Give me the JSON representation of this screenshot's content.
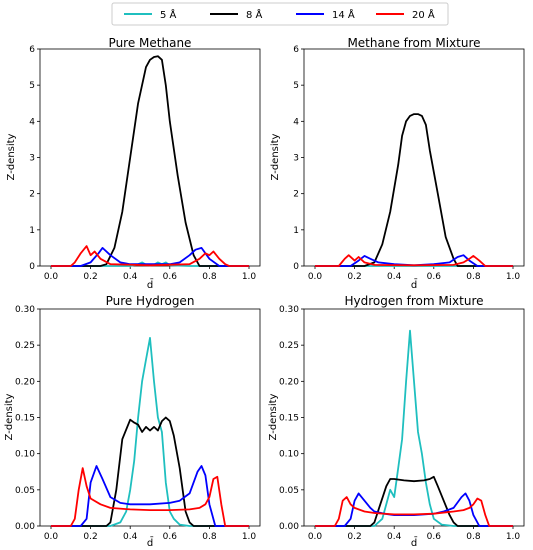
{
  "legend": {
    "items": [
      {
        "label": "5 Å",
        "color": "#1fbfbf"
      },
      {
        "label": "8 Å",
        "color": "#000000"
      },
      {
        "label": "14 Å",
        "color": "#0000ff"
      },
      {
        "label": "20 Å",
        "color": "#ff0000"
      }
    ]
  },
  "chart_data": [
    {
      "type": "line",
      "title": "Pure Methane",
      "xlabel": "d̄",
      "ylabel": "Z-density",
      "xlim": [
        0.0,
        1.0
      ],
      "ylim": [
        0,
        6
      ],
      "xticks": [
        "0.0",
        "0.2",
        "0.4",
        "0.6",
        "0.8",
        "1.0"
      ],
      "yticks": [
        "0",
        "1",
        "2",
        "3",
        "4",
        "5",
        "6"
      ],
      "series": [
        {
          "name": "5 Å",
          "color": "#1fbfbf",
          "x": [
            0.0,
            0.1,
            0.3,
            0.4,
            0.44,
            0.46,
            0.48,
            0.5,
            0.52,
            0.54,
            0.56,
            0.58,
            0.6,
            0.7,
            1.0
          ],
          "y": [
            0,
            0,
            0,
            0,
            0.05,
            0.1,
            0.04,
            0.02,
            0.04,
            0.1,
            0.05,
            0.1,
            0.02,
            0,
            0
          ]
        },
        {
          "name": "8 Å",
          "color": "#000000",
          "x": [
            0.0,
            0.25,
            0.28,
            0.32,
            0.36,
            0.4,
            0.44,
            0.48,
            0.5,
            0.52,
            0.54,
            0.56,
            0.58,
            0.6,
            0.64,
            0.68,
            0.72,
            0.75,
            1.0
          ],
          "y": [
            0,
            0,
            0.05,
            0.5,
            1.5,
            3.0,
            4.5,
            5.5,
            5.7,
            5.78,
            5.8,
            5.7,
            5.0,
            4.0,
            2.5,
            1.2,
            0.3,
            0,
            0
          ]
        },
        {
          "name": "14 Å",
          "color": "#0000ff",
          "x": [
            0.0,
            0.15,
            0.2,
            0.24,
            0.26,
            0.3,
            0.35,
            0.4,
            0.5,
            0.6,
            0.65,
            0.7,
            0.73,
            0.76,
            0.8,
            0.85,
            1.0
          ],
          "y": [
            0,
            0,
            0.1,
            0.35,
            0.5,
            0.3,
            0.1,
            0.05,
            0.05,
            0.05,
            0.1,
            0.3,
            0.45,
            0.5,
            0.2,
            0,
            0
          ]
        },
        {
          "name": "20 Å",
          "color": "#ff0000",
          "x": [
            0.0,
            0.1,
            0.12,
            0.15,
            0.18,
            0.2,
            0.22,
            0.25,
            0.3,
            0.5,
            0.7,
            0.75,
            0.78,
            0.8,
            0.82,
            0.85,
            0.88,
            0.9,
            1.0
          ],
          "y": [
            0,
            0,
            0.1,
            0.35,
            0.55,
            0.3,
            0.4,
            0.2,
            0.05,
            0.02,
            0.05,
            0.2,
            0.35,
            0.3,
            0.4,
            0.2,
            0.05,
            0,
            0
          ]
        }
      ]
    },
    {
      "type": "line",
      "title": "Methane from Mixture",
      "xlabel": "d̄",
      "ylabel": "Z-density",
      "xlim": [
        0.0,
        1.0
      ],
      "ylim": [
        0,
        6
      ],
      "xticks": [
        "0.0",
        "0.2",
        "0.4",
        "0.6",
        "0.8",
        "1.0"
      ],
      "yticks": [
        "0",
        "1",
        "2",
        "3",
        "4",
        "5",
        "6"
      ],
      "series": [
        {
          "name": "5 Å",
          "color": "#1fbfbf",
          "x": [
            0.0,
            1.0
          ],
          "y": [
            0,
            0
          ]
        },
        {
          "name": "8 Å",
          "color": "#000000",
          "x": [
            0.0,
            0.25,
            0.3,
            0.34,
            0.38,
            0.42,
            0.44,
            0.46,
            0.48,
            0.5,
            0.52,
            0.54,
            0.56,
            0.58,
            0.62,
            0.66,
            0.7,
            0.72,
            1.0
          ],
          "y": [
            0,
            0,
            0.1,
            0.6,
            1.5,
            2.8,
            3.6,
            4.0,
            4.15,
            4.2,
            4.2,
            4.15,
            3.9,
            3.2,
            2.0,
            0.8,
            0.2,
            0,
            0
          ]
        },
        {
          "name": "14 Å",
          "color": "#0000ff",
          "x": [
            0.0,
            0.18,
            0.22,
            0.25,
            0.28,
            0.32,
            0.4,
            0.5,
            0.6,
            0.68,
            0.72,
            0.75,
            0.78,
            0.82,
            1.0
          ],
          "y": [
            0,
            0,
            0.15,
            0.28,
            0.2,
            0.1,
            0.05,
            0.02,
            0.05,
            0.1,
            0.25,
            0.3,
            0.15,
            0,
            0
          ]
        },
        {
          "name": "20 Å",
          "color": "#ff0000",
          "x": [
            0.0,
            0.12,
            0.15,
            0.17,
            0.2,
            0.22,
            0.25,
            0.3,
            0.5,
            0.7,
            0.75,
            0.78,
            0.8,
            0.83,
            0.86,
            1.0
          ],
          "y": [
            0,
            0,
            0.2,
            0.3,
            0.15,
            0.25,
            0.1,
            0.03,
            0.02,
            0.03,
            0.1,
            0.2,
            0.28,
            0.15,
            0,
            0
          ]
        }
      ]
    },
    {
      "type": "line",
      "title": "Pure Hydrogen",
      "xlabel": "d̄",
      "ylabel": "Z-density",
      "xlim": [
        0.0,
        1.0
      ],
      "ylim": [
        0,
        0.3
      ],
      "xticks": [
        "0.0",
        "0.2",
        "0.4",
        "0.6",
        "0.8",
        "1.0"
      ],
      "yticks": [
        "0.00",
        "0.05",
        "0.10",
        "0.15",
        "0.20",
        "0.25",
        "0.30"
      ],
      "series": [
        {
          "name": "5 Å",
          "color": "#1fbfbf",
          "x": [
            0.0,
            0.3,
            0.35,
            0.38,
            0.4,
            0.42,
            0.44,
            0.46,
            0.48,
            0.5,
            0.52,
            0.54,
            0.56,
            0.58,
            0.6,
            0.62,
            0.65,
            0.7,
            1.0
          ],
          "y": [
            0,
            0,
            0.005,
            0.02,
            0.05,
            0.09,
            0.15,
            0.2,
            0.23,
            0.26,
            0.2,
            0.15,
            0.13,
            0.06,
            0.02,
            0.01,
            0.002,
            0,
            0
          ]
        },
        {
          "name": "8 Å",
          "color": "#000000",
          "x": [
            0.0,
            0.28,
            0.3,
            0.33,
            0.36,
            0.4,
            0.42,
            0.44,
            0.46,
            0.48,
            0.5,
            0.52,
            0.54,
            0.56,
            0.58,
            0.6,
            0.62,
            0.65,
            0.68,
            0.7,
            0.72,
            1.0
          ],
          "y": [
            0,
            0,
            0.005,
            0.05,
            0.12,
            0.147,
            0.143,
            0.14,
            0.13,
            0.137,
            0.132,
            0.137,
            0.132,
            0.145,
            0.15,
            0.145,
            0.125,
            0.08,
            0.02,
            0.005,
            0,
            0
          ]
        },
        {
          "name": "14 Å",
          "color": "#0000ff",
          "x": [
            0.0,
            0.15,
            0.18,
            0.2,
            0.23,
            0.26,
            0.3,
            0.35,
            0.4,
            0.5,
            0.6,
            0.65,
            0.7,
            0.74,
            0.76,
            0.78,
            0.8,
            0.83,
            1.0
          ],
          "y": [
            0,
            0,
            0.01,
            0.06,
            0.083,
            0.065,
            0.04,
            0.032,
            0.03,
            0.03,
            0.032,
            0.035,
            0.045,
            0.075,
            0.083,
            0.07,
            0.03,
            0,
            0
          ]
        },
        {
          "name": "20 Å",
          "color": "#ff0000",
          "x": [
            0.0,
            0.1,
            0.12,
            0.14,
            0.16,
            0.18,
            0.2,
            0.25,
            0.3,
            0.4,
            0.5,
            0.6,
            0.7,
            0.75,
            0.78,
            0.8,
            0.82,
            0.84,
            0.86,
            0.88,
            1.0
          ],
          "y": [
            0,
            0,
            0.01,
            0.05,
            0.08,
            0.055,
            0.038,
            0.03,
            0.025,
            0.023,
            0.022,
            0.022,
            0.023,
            0.025,
            0.03,
            0.04,
            0.065,
            0.068,
            0.03,
            0,
            0
          ]
        }
      ]
    },
    {
      "type": "line",
      "title": "Hydrogen from Mixture",
      "xlabel": "d̄",
      "ylabel": "Z-density",
      "xlim": [
        0.0,
        1.0
      ],
      "ylim": [
        0,
        0.3
      ],
      "xticks": [
        "0.0",
        "0.2",
        "0.4",
        "0.6",
        "0.8",
        "1.0"
      ],
      "yticks": [
        "0.00",
        "0.05",
        "0.10",
        "0.15",
        "0.20",
        "0.25",
        "0.30"
      ],
      "series": [
        {
          "name": "5 Å",
          "color": "#1fbfbf",
          "x": [
            0.0,
            0.3,
            0.34,
            0.36,
            0.38,
            0.4,
            0.42,
            0.44,
            0.46,
            0.48,
            0.5,
            0.52,
            0.54,
            0.56,
            0.58,
            0.6,
            0.64,
            0.7,
            1.0
          ],
          "y": [
            0,
            0,
            0.01,
            0.03,
            0.05,
            0.04,
            0.08,
            0.12,
            0.2,
            0.27,
            0.2,
            0.13,
            0.1,
            0.06,
            0.03,
            0.01,
            0.002,
            0,
            0
          ]
        },
        {
          "name": "8 Å",
          "color": "#000000",
          "x": [
            0.0,
            0.28,
            0.3,
            0.33,
            0.36,
            0.38,
            0.4,
            0.45,
            0.5,
            0.55,
            0.58,
            0.6,
            0.62,
            0.65,
            0.68,
            0.7,
            0.72,
            1.0
          ],
          "y": [
            0,
            0,
            0.005,
            0.03,
            0.055,
            0.065,
            0.065,
            0.063,
            0.062,
            0.063,
            0.065,
            0.068,
            0.055,
            0.035,
            0.015,
            0.005,
            0,
            0
          ]
        },
        {
          "name": "14 Å",
          "color": "#0000ff",
          "x": [
            0.0,
            0.15,
            0.18,
            0.2,
            0.22,
            0.25,
            0.28,
            0.3,
            0.35,
            0.4,
            0.5,
            0.6,
            0.65,
            0.7,
            0.74,
            0.76,
            0.78,
            0.8,
            0.83,
            1.0
          ],
          "y": [
            0,
            0,
            0.01,
            0.035,
            0.045,
            0.035,
            0.025,
            0.02,
            0.017,
            0.015,
            0.015,
            0.017,
            0.02,
            0.025,
            0.04,
            0.045,
            0.035,
            0.015,
            0,
            0
          ]
        },
        {
          "name": "20 Å",
          "color": "#ff0000",
          "x": [
            0.0,
            0.1,
            0.12,
            0.14,
            0.16,
            0.18,
            0.2,
            0.25,
            0.3,
            0.4,
            0.5,
            0.6,
            0.7,
            0.75,
            0.78,
            0.8,
            0.82,
            0.84,
            0.86,
            0.88,
            1.0
          ],
          "y": [
            0,
            0,
            0.01,
            0.035,
            0.04,
            0.03,
            0.025,
            0.02,
            0.018,
            0.016,
            0.016,
            0.017,
            0.02,
            0.022,
            0.025,
            0.03,
            0.038,
            0.035,
            0.015,
            0,
            0
          ]
        }
      ]
    }
  ]
}
